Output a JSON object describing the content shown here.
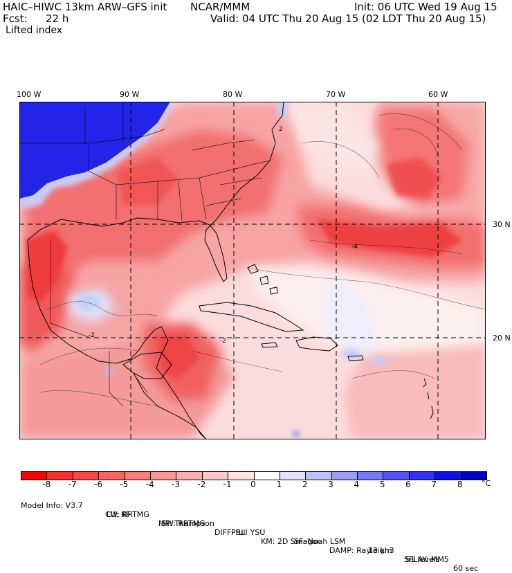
{
  "header": {
    "model_title": "HAIC–HIWC 13km ARW–GFS init",
    "org": "NCAR/MMM",
    "init": "Init: 06 UTC Wed 19 Aug 15",
    "fcst_label": "Fcst:",
    "fcst_value": "22 h",
    "valid": "Valid: 04 UTC Thu 20 Aug 15 (02 LDT Thu 20 Aug 15)",
    "field": "Lifted index"
  },
  "map": {
    "lon_labels": [
      "100 W",
      "90 W",
      "80 W",
      "70 W",
      "60 W"
    ],
    "lat_labels": [
      "30 N",
      "20 N"
    ],
    "contour_labels": [
      "-2",
      "-2",
      "-4",
      "2"
    ],
    "colors": {
      "strong_red": "#ee3030",
      "mid_red": "#f47070",
      "light_red": "#f9aaaa",
      "pale": "#fbdede",
      "blue": "#2020e0",
      "light_blue": "#c8d0f8"
    }
  },
  "colorbar": {
    "ticks": [
      "-8",
      "-7",
      "-6",
      "-5",
      "-4",
      "-3",
      "-2",
      "-1",
      "0",
      "1",
      "2",
      "3",
      "4",
      "5",
      "6",
      "7",
      "8"
    ],
    "unit": "°C",
    "colors": [
      "#ff0000",
      "#ff2a2a",
      "#ff4646",
      "#ff6060",
      "#ff7a7a",
      "#ff9494",
      "#ffaeae",
      "#ffc8c8",
      "#ffe2e2",
      "#ffffff",
      "#e2e2ff",
      "#c0c0ff",
      "#9c9cff",
      "#7878ff",
      "#5454ff",
      "#3030ff",
      "#1010ee",
      "#0000cc"
    ]
  },
  "info": {
    "line1": [
      "Model Info: V3.7",
      "CU: KF",
      "MP: Thompson",
      "PBL: YSU",
      "SF: Noah LSM",
      "13 km",
      "51 levels",
      "60 sec"
    ],
    "line2": [
      "LW: RRTMG",
      "SW: RRTMG",
      "DIFF: full",
      "KM: 2D Smagor",
      "DAMP: Rayleigh3",
      "SFLAY: MM5"
    ]
  }
}
